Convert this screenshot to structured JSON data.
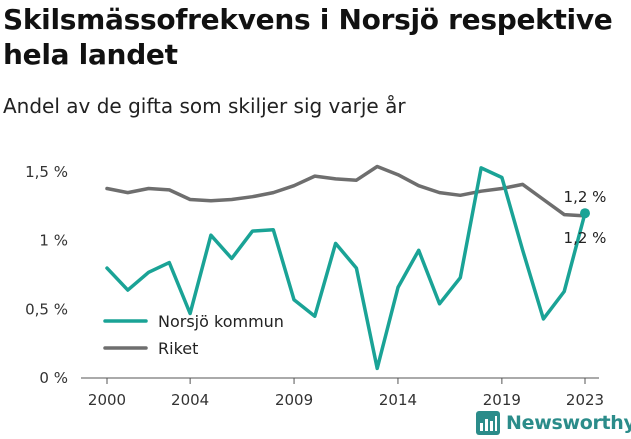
{
  "header": {
    "title": "Skilsmässofrekvens i Norsjö respektive hela landet",
    "subtitle": "Andel av de gifta som skiljer sig varje år"
  },
  "branding": {
    "name": "Newsworthy",
    "logo_icon": "newsworthy-bar-chart-icon",
    "color": "#2b8c8a"
  },
  "chart_data": {
    "type": "line",
    "title": "Skilsmässofrekvens i Norsjö respektive hela landet",
    "subtitle": "Andel av de gifta som skiljer sig varje år",
    "x_ticks": [
      "2000",
      "2004",
      "2009",
      "2014",
      "2019",
      "2023"
    ],
    "y_ticks": [
      "0 %",
      "0,5 %",
      "1 %",
      "1,5 %"
    ],
    "ylim": [
      0,
      1.5
    ],
    "grid": false,
    "legend_placement": "bottom-left",
    "x": [
      2000,
      2001,
      2002,
      2003,
      2004,
      2005,
      2006,
      2007,
      2008,
      2009,
      2010,
      2011,
      2012,
      2013,
      2014,
      2015,
      2016,
      2017,
      2018,
      2019,
      2020,
      2021,
      2022,
      2023
    ],
    "series": [
      {
        "name": "Norsjö kommun",
        "color": "#1aa396",
        "values": [
          0.8,
          0.64,
          0.77,
          0.84,
          0.47,
          1.04,
          0.87,
          1.07,
          1.08,
          0.57,
          0.45,
          0.98,
          0.8,
          0.07,
          0.66,
          0.93,
          0.54,
          0.73,
          1.53,
          1.46,
          0.93,
          0.43,
          0.63,
          1.2
        ],
        "end_label": "1,2 %"
      },
      {
        "name": "Riket",
        "color": "#6e6e6e",
        "values": [
          1.38,
          1.35,
          1.38,
          1.37,
          1.3,
          1.29,
          1.3,
          1.32,
          1.35,
          1.4,
          1.47,
          1.45,
          1.44,
          1.54,
          1.48,
          1.4,
          1.35,
          1.33,
          1.36,
          1.38,
          1.41,
          1.3,
          1.19,
          1.18
        ],
        "end_label": "1,2 %"
      }
    ]
  }
}
